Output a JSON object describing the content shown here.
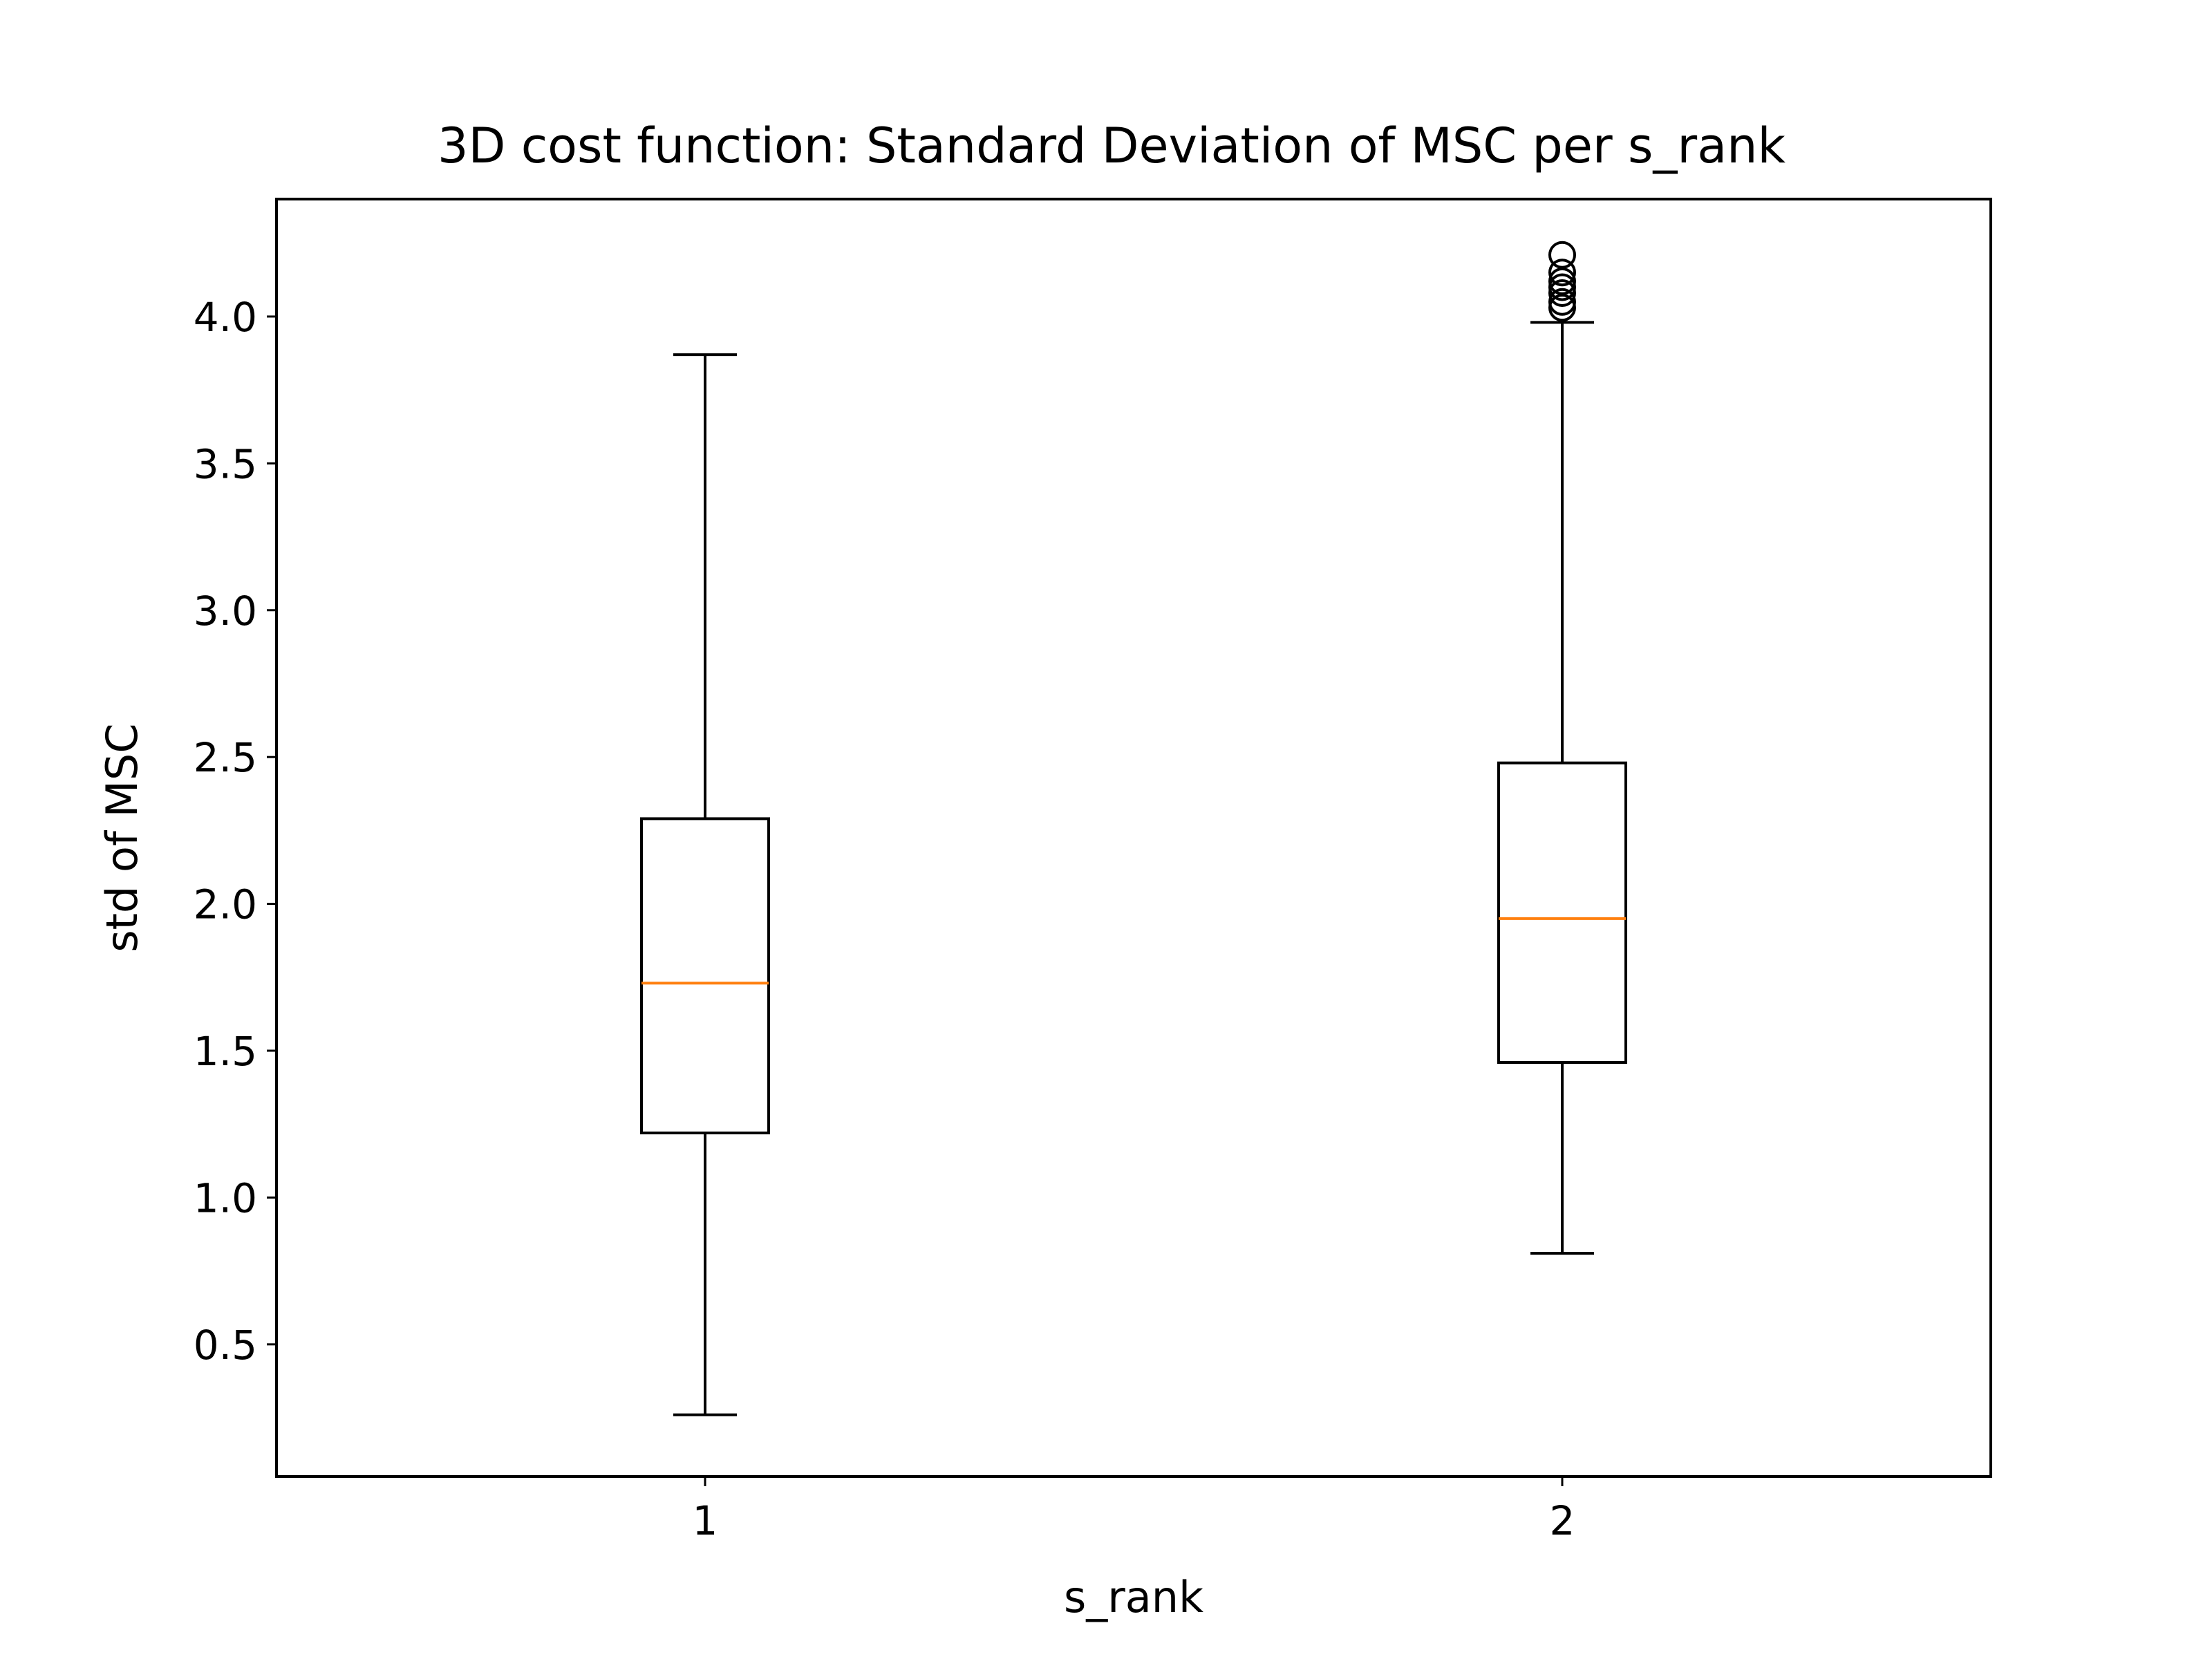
{
  "chart_data": {
    "type": "box",
    "title": "3D cost function: Standard Deviation of MSC per s_rank",
    "xlabel": "s_rank",
    "ylabel": "std of MSC",
    "ylim": [
      0.05,
      4.4
    ],
    "yticks": [
      "0.5",
      "1.0",
      "1.5",
      "2.0",
      "2.5",
      "3.0",
      "3.5",
      "4.0"
    ],
    "ytick_values": [
      0.5,
      1.0,
      1.5,
      2.0,
      2.5,
      3.0,
      3.5,
      4.0
    ],
    "categories": [
      "1",
      "2"
    ],
    "boxes": [
      {
        "category": "1",
        "whisker_low": 0.26,
        "q1": 1.22,
        "median": 1.73,
        "q3": 2.29,
        "whisker_high": 3.87,
        "outliers": []
      },
      {
        "category": "2",
        "whisker_low": 0.81,
        "q1": 1.46,
        "median": 1.95,
        "q3": 2.48,
        "whisker_high": 3.98,
        "outliers": [
          4.03,
          4.05,
          4.08,
          4.1,
          4.12,
          4.15,
          4.21
        ]
      }
    ],
    "colors": {
      "box": "#000000",
      "median": "#ff7f0e",
      "background": "#ffffff"
    },
    "grid": false
  }
}
